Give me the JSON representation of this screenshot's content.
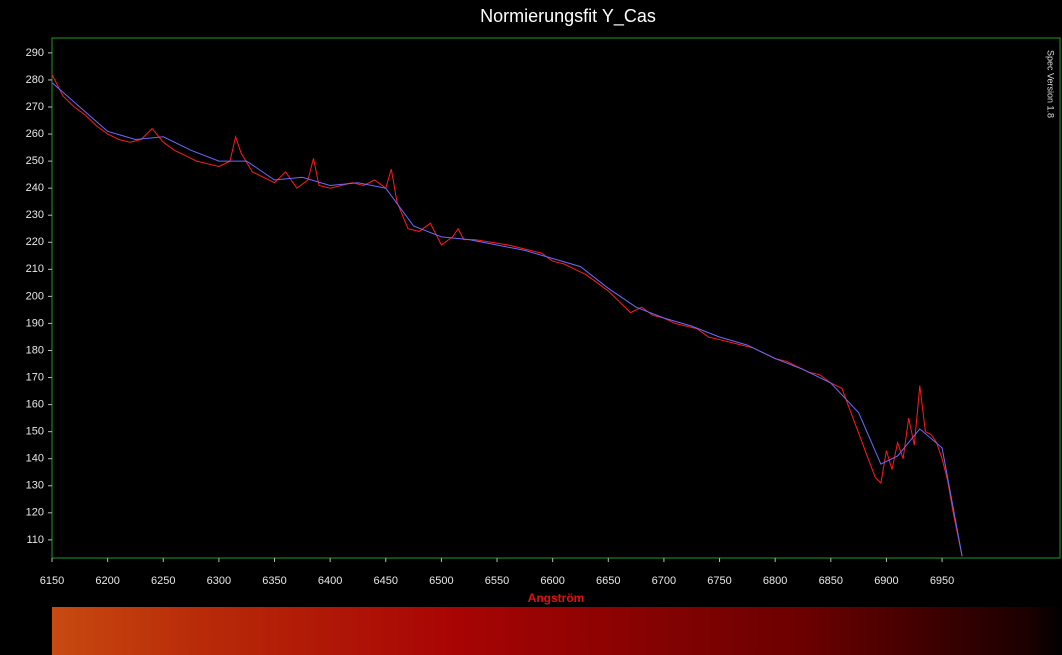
{
  "chart_data": {
    "type": "line",
    "title": "Normierungsfit Y_Cas",
    "x_label": "Angström",
    "annotation": "Spec Version 1.8",
    "xlim": [
      6150,
      7056
    ],
    "ylim": [
      103.3,
      295.5
    ],
    "xticks": [
      6150,
      6200,
      6250,
      6300,
      6350,
      6400,
      6450,
      6500,
      6550,
      6600,
      6650,
      6700,
      6750,
      6800,
      6850,
      6900,
      6950
    ],
    "yticks": [
      110,
      120,
      130,
      140,
      150,
      160,
      170,
      180,
      190,
      200,
      210,
      220,
      230,
      240,
      250,
      260,
      270,
      280,
      290
    ],
    "grid": false,
    "series": [
      {
        "color": "#ff1a1a",
        "x": [
          6150,
          6160,
          6170,
          6180,
          6190,
          6200,
          6210,
          6220,
          6230,
          6240,
          6250,
          6260,
          6270,
          6280,
          6290,
          6300,
          6310,
          6315,
          6320,
          6330,
          6340,
          6350,
          6360,
          6370,
          6380,
          6385,
          6390,
          6400,
          6410,
          6420,
          6430,
          6440,
          6450,
          6455,
          6460,
          6470,
          6480,
          6490,
          6500,
          6510,
          6515,
          6520,
          6530,
          6560,
          6590,
          6600,
          6610,
          6620,
          6630,
          6640,
          6650,
          6660,
          6670,
          6680,
          6690,
          6700,
          6710,
          6720,
          6730,
          6740,
          6750,
          6760,
          6770,
          6780,
          6790,
          6800,
          6810,
          6820,
          6830,
          6840,
          6850,
          6855,
          6860,
          6890,
          6895,
          6900,
          6905,
          6910,
          6915,
          6920,
          6925,
          6930,
          6935,
          6940,
          6945,
          6950,
          6955,
          6960,
          6968
        ],
        "values": [
          282,
          274,
          270,
          267,
          263,
          260,
          258,
          257,
          258,
          262,
          257,
          254,
          252,
          250,
          249,
          248,
          250,
          259,
          253,
          246,
          244,
          242,
          246,
          240,
          243,
          251,
          241,
          240,
          241,
          242,
          241,
          243,
          240,
          247,
          235,
          225,
          224,
          227,
          219,
          222,
          225,
          221,
          221,
          219,
          216,
          213,
          212,
          210,
          208,
          205,
          202,
          198,
          194,
          196,
          193,
          192,
          190,
          189,
          188,
          185,
          184,
          183,
          182,
          181,
          179,
          177,
          176,
          174,
          172,
          171,
          168,
          167,
          166,
          133,
          131,
          143,
          136,
          146,
          140,
          155,
          145,
          167,
          150,
          149,
          146,
          140,
          132,
          120,
          104
        ]
      },
      {
        "color": "#6a6aff",
        "x": [
          6150,
          6175,
          6200,
          6225,
          6250,
          6275,
          6300,
          6325,
          6350,
          6375,
          6400,
          6425,
          6450,
          6475,
          6500,
          6525,
          6550,
          6575,
          6600,
          6625,
          6650,
          6675,
          6700,
          6725,
          6750,
          6775,
          6800,
          6825,
          6850,
          6875,
          6895,
          6910,
          6930,
          6950,
          6968
        ],
        "values": [
          279,
          270,
          261,
          258,
          259,
          254,
          250,
          250,
          243,
          244,
          241,
          242,
          240,
          226,
          222,
          221,
          219,
          217,
          214,
          211,
          203,
          196,
          192,
          189,
          185,
          182,
          177,
          173,
          168,
          157,
          138,
          141,
          151,
          144,
          104
        ]
      }
    ]
  }
}
